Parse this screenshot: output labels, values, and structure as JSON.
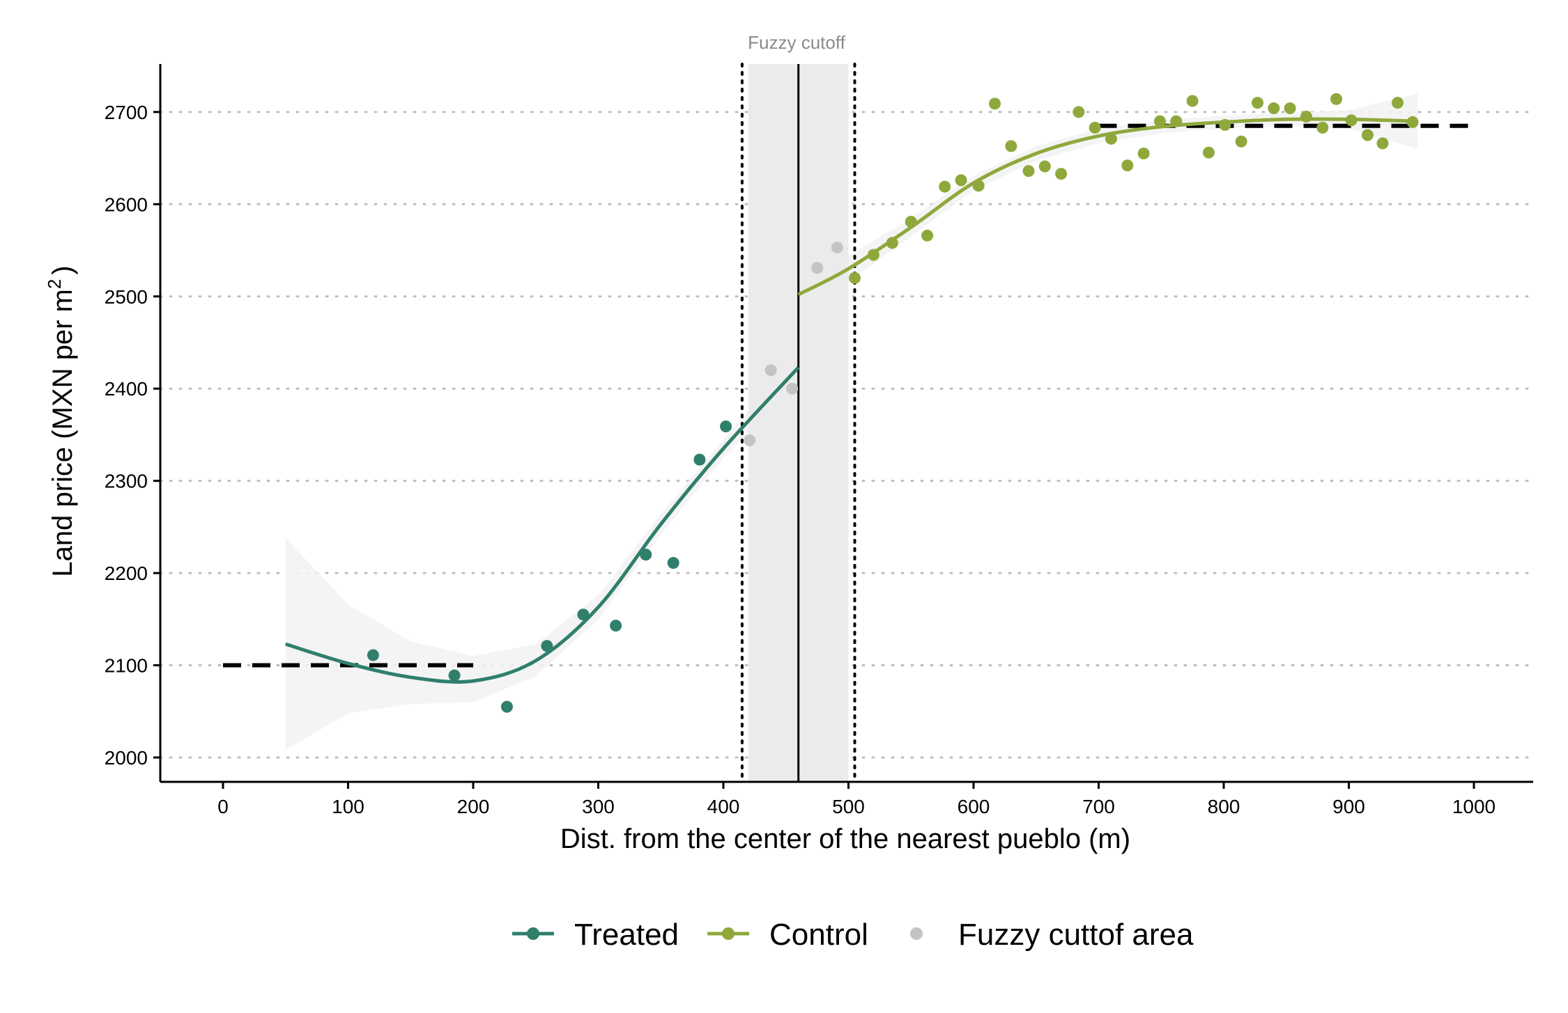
{
  "chart_data": {
    "type": "scatter",
    "title": "",
    "xlabel": "Dist. from the center of the nearest pueblo (m)",
    "ylabel": "Land price (MXN per m",
    "ylabel_sup": "2",
    "ylabel_close": ")",
    "xlim": [
      -50,
      1050
    ],
    "ylim": [
      1975,
      2755
    ],
    "xticks": [
      0,
      100,
      200,
      300,
      400,
      500,
      600,
      700,
      800,
      900,
      1000
    ],
    "yticks": [
      2000,
      2100,
      2200,
      2300,
      2400,
      2500,
      2600,
      2700
    ],
    "grid": "horizontal dotted",
    "legend_position": "bottom",
    "annotation": {
      "text": "Fuzzy cutoff",
      "cutoff_x": 460,
      "fuzzy_band": [
        420,
        500
      ],
      "dotted_lines_x": [
        415,
        505
      ]
    },
    "colors": {
      "treated": "#2f7f6c",
      "control": "#8fa83c",
      "fuzzy": "#c4c4c4",
      "band": "#ebebeb",
      "ribbon": "#f2f2f2"
    },
    "series": [
      {
        "name": "Treated",
        "points": [
          [
            120,
            2111
          ],
          [
            185,
            2089
          ],
          [
            227,
            2055
          ],
          [
            259,
            2121
          ],
          [
            288,
            2155
          ],
          [
            314,
            2143
          ],
          [
            338,
            2220
          ],
          [
            360,
            2211
          ],
          [
            381,
            2323
          ],
          [
            402,
            2359
          ]
        ],
        "fit": [
          [
            50,
            2123
          ],
          [
            100,
            2102
          ],
          [
            150,
            2087
          ],
          [
            200,
            2083
          ],
          [
            250,
            2105
          ],
          [
            300,
            2163
          ],
          [
            350,
            2253
          ],
          [
            400,
            2335
          ],
          [
            460,
            2423
          ]
        ],
        "ribbon_upper": [
          [
            50,
            2238
          ],
          [
            100,
            2166
          ],
          [
            150,
            2126
          ],
          [
            200,
            2110
          ],
          [
            250,
            2123
          ],
          [
            300,
            2176
          ],
          [
            350,
            2264
          ],
          [
            400,
            2345
          ],
          [
            460,
            2440
          ]
        ],
        "ribbon_lower": [
          [
            50,
            2008
          ],
          [
            100,
            2048
          ],
          [
            150,
            2058
          ],
          [
            200,
            2060
          ],
          [
            250,
            2088
          ],
          [
            300,
            2150
          ],
          [
            350,
            2242
          ],
          [
            400,
            2325
          ],
          [
            460,
            2406
          ]
        ],
        "reference_mean": 2100,
        "reference_range": [
          0,
          200
        ]
      },
      {
        "name": "Control",
        "points": [
          [
            505,
            2520
          ],
          [
            520,
            2545
          ],
          [
            535,
            2558
          ],
          [
            550,
            2581
          ],
          [
            563,
            2566
          ],
          [
            577,
            2619
          ],
          [
            590,
            2626
          ],
          [
            604,
            2620
          ],
          [
            617,
            2709
          ],
          [
            630,
            2663
          ],
          [
            644,
            2636
          ],
          [
            657,
            2641
          ],
          [
            670,
            2633
          ],
          [
            684,
            2700
          ],
          [
            697,
            2683
          ],
          [
            710,
            2671
          ],
          [
            723,
            2642
          ],
          [
            736,
            2655
          ],
          [
            749,
            2690
          ],
          [
            762,
            2690
          ],
          [
            775,
            2712
          ],
          [
            788,
            2656
          ],
          [
            801,
            2686
          ],
          [
            814,
            2668
          ],
          [
            827,
            2710
          ],
          [
            840,
            2704
          ],
          [
            853,
            2704
          ],
          [
            866,
            2695
          ],
          [
            879,
            2683
          ],
          [
            890,
            2714
          ],
          [
            902,
            2691
          ],
          [
            915,
            2675
          ],
          [
            927,
            2666
          ],
          [
            939,
            2710
          ],
          [
            951,
            2689
          ]
        ],
        "fit": [
          [
            460,
            2502
          ],
          [
            500,
            2530
          ],
          [
            550,
            2575
          ],
          [
            600,
            2623
          ],
          [
            650,
            2655
          ],
          [
            700,
            2674
          ],
          [
            750,
            2684
          ],
          [
            800,
            2689
          ],
          [
            850,
            2692
          ],
          [
            900,
            2692
          ],
          [
            955,
            2690
          ]
        ],
        "ribbon_upper": [
          [
            460,
            2520
          ],
          [
            500,
            2544
          ],
          [
            550,
            2585
          ],
          [
            600,
            2631
          ],
          [
            650,
            2663
          ],
          [
            700,
            2682
          ],
          [
            750,
            2691
          ],
          [
            800,
            2696
          ],
          [
            850,
            2699
          ],
          [
            900,
            2702
          ],
          [
            955,
            2720
          ]
        ],
        "ribbon_lower": [
          [
            460,
            2484
          ],
          [
            500,
            2516
          ],
          [
            550,
            2565
          ],
          [
            600,
            2615
          ],
          [
            650,
            2647
          ],
          [
            700,
            2666
          ],
          [
            750,
            2677
          ],
          [
            800,
            2682
          ],
          [
            850,
            2685
          ],
          [
            900,
            2682
          ],
          [
            955,
            2660
          ]
        ],
        "reference_mean": 2685,
        "reference_range": [
          700,
          1000
        ]
      },
      {
        "name": "Fuzzy cuttof area",
        "points": [
          [
            421,
            2344
          ],
          [
            438,
            2420
          ],
          [
            455,
            2400
          ],
          [
            475,
            2531
          ],
          [
            491,
            2553
          ]
        ]
      }
    ]
  }
}
